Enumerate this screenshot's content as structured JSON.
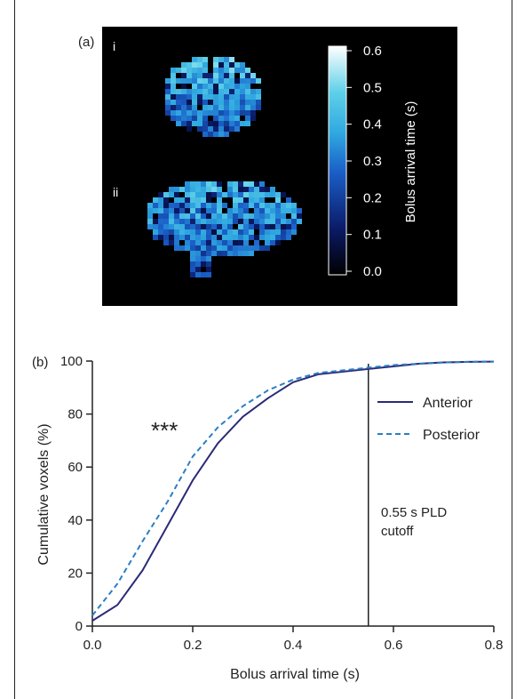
{
  "panel_a": {
    "label": "(a)",
    "image_labels": [
      "i",
      "ii"
    ],
    "colorbar": {
      "title": "Bolus arrival time (s)",
      "ticks": [
        "0.6",
        "0.5",
        "0.4",
        "0.3",
        "0.2",
        "0.1",
        "0.0"
      ],
      "range": [
        0.0,
        0.6
      ],
      "colors": [
        "#000000",
        "#0b1a66",
        "#1a5fc8",
        "#2fa8e0",
        "#5fd0e8",
        "#ffffff"
      ]
    }
  },
  "panel_b": {
    "label": "(b)",
    "significance": "***",
    "annotation_lines": [
      "0.55 s PLD",
      "cutoff"
    ]
  },
  "chart_data": {
    "type": "line",
    "title": "",
    "xlabel": "Bolus arrival time (s)",
    "ylabel": "Cumulative voxels (%)",
    "xlim": [
      0,
      0.8
    ],
    "ylim": [
      0,
      100
    ],
    "xticks": [
      "0.0",
      "0.2",
      "0.4",
      "0.6",
      "0.8"
    ],
    "yticks": [
      "0",
      "20",
      "40",
      "60",
      "80",
      "100"
    ],
    "grid": false,
    "legend_position": "right",
    "vline": {
      "x": 0.55
    },
    "series": [
      {
        "name": "Anterior",
        "color": "#2b2a78",
        "style": "solid",
        "x": [
          0.0,
          0.05,
          0.1,
          0.15,
          0.2,
          0.25,
          0.3,
          0.35,
          0.4,
          0.45,
          0.5,
          0.55,
          0.6,
          0.65,
          0.7,
          0.75,
          0.8
        ],
        "y": [
          2,
          8,
          21,
          38,
          55,
          69,
          79,
          86,
          92,
          95,
          96,
          97,
          98,
          99,
          99.5,
          99.7,
          99.8
        ]
      },
      {
        "name": "Posterior",
        "color": "#2a7fc4",
        "style": "dashed",
        "x": [
          0.0,
          0.05,
          0.1,
          0.15,
          0.2,
          0.25,
          0.3,
          0.35,
          0.4,
          0.45,
          0.5,
          0.55,
          0.6,
          0.65,
          0.7,
          0.75,
          0.8
        ],
        "y": [
          4,
          16,
          32,
          47,
          64,
          75,
          83,
          89,
          93,
          95.5,
          96.5,
          97.5,
          98.5,
          99,
          99.5,
          99.7,
          99.8
        ]
      }
    ]
  }
}
